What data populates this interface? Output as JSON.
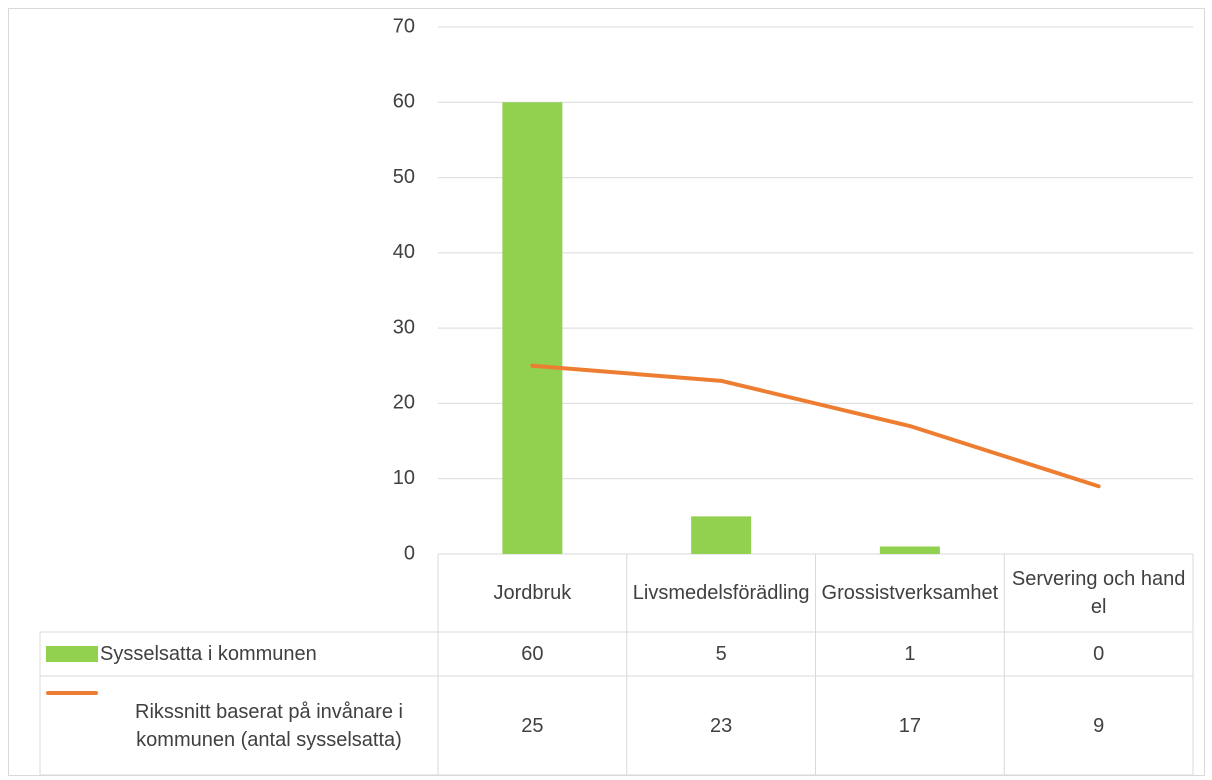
{
  "chart_data": {
    "type": "bar-line",
    "categories": [
      "Jordbruk",
      "Livsmedelsförädling",
      "Grossistverksamhet",
      "Servering och handel"
    ],
    "series": [
      {
        "name": "Sysselsatta i kommunen",
        "type": "bar",
        "color": "#92d050",
        "values": [
          60,
          5,
          1,
          0
        ]
      },
      {
        "name": "Rikssnitt baserat på invånare i kommunen (antal sysselsatta)",
        "type": "line",
        "color": "#ed7d31",
        "values": [
          25,
          23,
          17,
          9
        ]
      }
    ],
    "ylim": [
      0,
      70
    ],
    "yticks": [
      0,
      10,
      20,
      30,
      40,
      50,
      60,
      70
    ],
    "grid": true,
    "data_table": true
  }
}
